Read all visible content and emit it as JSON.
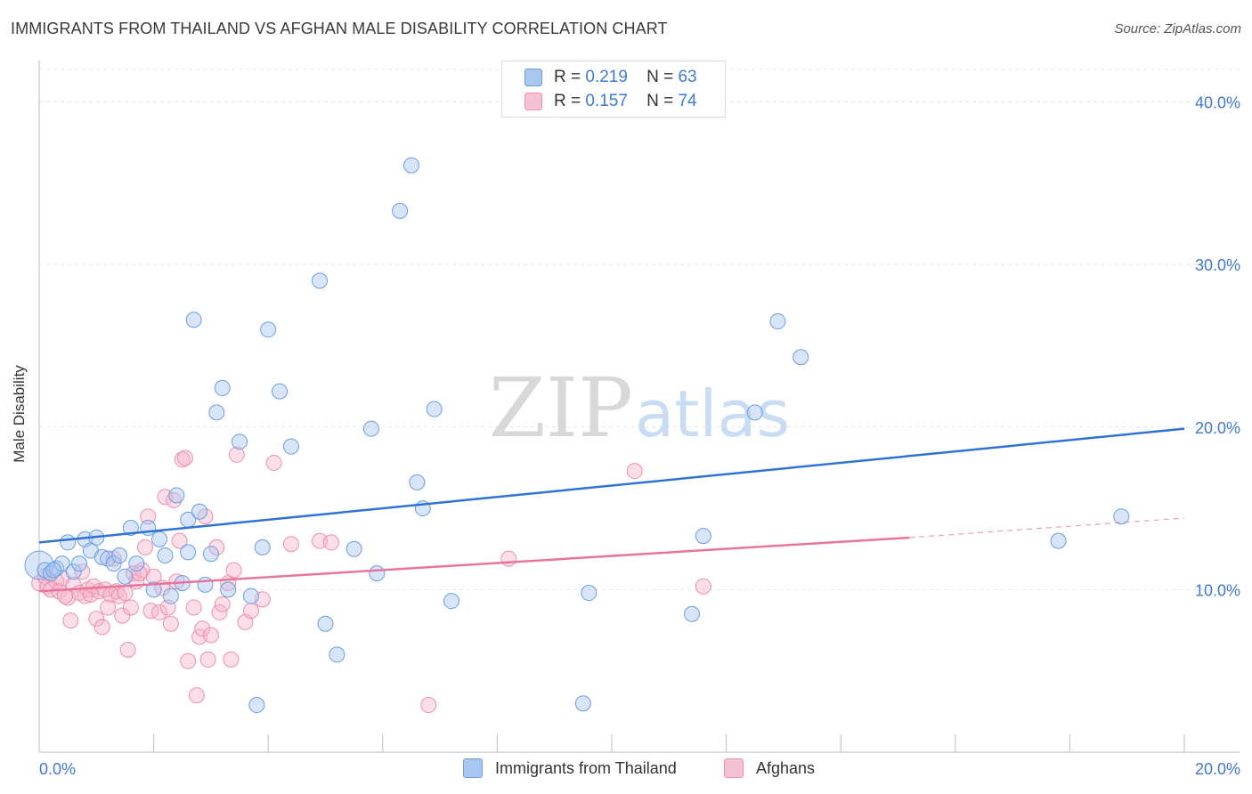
{
  "title": "IMMIGRANTS FROM THAILAND VS AFGHAN MALE DISABILITY CORRELATION CHART",
  "source": "Source: ZipAtlas.com",
  "watermark": {
    "zip": "ZIP",
    "atlas": "atlas"
  },
  "legend_top": {
    "series1": {
      "r_label": "R =",
      "r_value": "0.219",
      "n_label": "N =",
      "n_value": "63"
    },
    "series2": {
      "r_label": "R =",
      "r_value": "0.157",
      "n_label": "N =",
      "n_value": "74"
    }
  },
  "colors": {
    "blue_fill": "#a8c6f0",
    "blue_stroke": "#6a9ee0",
    "blue_line": "#2f72d4",
    "pink_fill": "#f6b6cc",
    "pink_stroke": "#ec8fb0",
    "pink_line": "#e8749b",
    "tick_text": "#3f7ad0",
    "grid": "#e2e2e2"
  },
  "chart_data": {
    "type": "scatter",
    "title": "IMMIGRANTS FROM THAILAND VS AFGHAN MALE DISABILITY CORRELATION CHART",
    "xlabel": "",
    "ylabel": "Male Disability",
    "xlim": [
      0,
      20
    ],
    "ylim": [
      0,
      42
    ],
    "x_tick_labels": [
      "0.0%",
      "20.0%"
    ],
    "y_ticks": [
      10,
      20,
      30,
      40
    ],
    "y_tick_labels": [
      "10.0%",
      "20.0%",
      "30.0%",
      "40.0%"
    ],
    "series": [
      {
        "name": "Immigrants from Thailand",
        "color": "#a8c6f0",
        "trend": {
          "x0": 0,
          "y0": 12.9,
          "x1": 20,
          "y1": 19.9
        },
        "points": [
          [
            0.0,
            11.5
          ],
          [
            0.1,
            11.2
          ],
          [
            0.2,
            11.0
          ],
          [
            0.3,
            11.3
          ],
          [
            0.4,
            11.6
          ],
          [
            0.5,
            12.9
          ],
          [
            0.6,
            11.1
          ],
          [
            0.7,
            11.6
          ],
          [
            0.8,
            13.1
          ],
          [
            0.9,
            12.4
          ],
          [
            1.0,
            13.2
          ],
          [
            1.1,
            12.0
          ],
          [
            1.2,
            11.9
          ],
          [
            1.3,
            11.6
          ],
          [
            1.4,
            12.1
          ],
          [
            1.5,
            10.8
          ],
          [
            1.6,
            13.8
          ],
          [
            1.7,
            11.6
          ],
          [
            1.9,
            13.8
          ],
          [
            2.0,
            10.0
          ],
          [
            2.1,
            13.1
          ],
          [
            2.2,
            12.1
          ],
          [
            2.3,
            9.6
          ],
          [
            2.4,
            15.8
          ],
          [
            2.5,
            10.4
          ],
          [
            2.6,
            14.3
          ],
          [
            2.7,
            26.6
          ],
          [
            2.8,
            14.8
          ],
          [
            2.9,
            10.3
          ],
          [
            3.0,
            12.2
          ],
          [
            3.1,
            20.9
          ],
          [
            3.2,
            22.4
          ],
          [
            3.3,
            10.0
          ],
          [
            3.5,
            19.1
          ],
          [
            3.7,
            9.6
          ],
          [
            3.9,
            12.6
          ],
          [
            4.0,
            26.0
          ],
          [
            4.2,
            22.2
          ],
          [
            4.4,
            18.8
          ],
          [
            4.9,
            29.0
          ],
          [
            5.0,
            7.9
          ],
          [
            5.2,
            6.0
          ],
          [
            5.5,
            12.5
          ],
          [
            5.8,
            19.9
          ],
          [
            5.9,
            11.0
          ],
          [
            6.3,
            33.3
          ],
          [
            6.5,
            36.1
          ],
          [
            6.6,
            16.6
          ],
          [
            6.7,
            15.0
          ],
          [
            6.9,
            21.1
          ],
          [
            7.2,
            9.3
          ],
          [
            9.5,
            3.0
          ],
          [
            9.6,
            9.8
          ],
          [
            11.4,
            8.5
          ],
          [
            11.6,
            13.3
          ],
          [
            12.5,
            20.9
          ],
          [
            12.9,
            26.5
          ],
          [
            13.3,
            24.3
          ],
          [
            17.8,
            13.0
          ],
          [
            18.9,
            14.5
          ],
          [
            2.6,
            12.3
          ],
          [
            3.8,
            2.9
          ],
          [
            0.25,
            11.2
          ]
        ]
      },
      {
        "name": "Afghans",
        "color": "#f6b6cc",
        "trend": {
          "x0": 0,
          "y0": 9.9,
          "x1": 15.2,
          "y1": 13.2,
          "dash_x1": 20,
          "dash_y1": 14.4
        },
        "points": [
          [
            0.0,
            10.4
          ],
          [
            0.1,
            10.8
          ],
          [
            0.15,
            10.2
          ],
          [
            0.2,
            10.0
          ],
          [
            0.3,
            10.5
          ],
          [
            0.35,
            9.9
          ],
          [
            0.4,
            10.7
          ],
          [
            0.5,
            9.5
          ],
          [
            0.55,
            8.1
          ],
          [
            0.6,
            10.3
          ],
          [
            0.7,
            9.8
          ],
          [
            0.75,
            11.1
          ],
          [
            0.8,
            9.6
          ],
          [
            0.85,
            10.0
          ],
          [
            0.9,
            9.7
          ],
          [
            0.95,
            10.2
          ],
          [
            1.0,
            8.2
          ],
          [
            1.05,
            9.9
          ],
          [
            1.1,
            7.7
          ],
          [
            1.15,
            10.0
          ],
          [
            1.2,
            8.9
          ],
          [
            1.25,
            9.7
          ],
          [
            1.3,
            11.9
          ],
          [
            1.35,
            9.9
          ],
          [
            1.4,
            9.6
          ],
          [
            1.45,
            8.4
          ],
          [
            1.5,
            9.8
          ],
          [
            1.55,
            6.3
          ],
          [
            1.6,
            8.9
          ],
          [
            1.65,
            11.0
          ],
          [
            1.7,
            10.5
          ],
          [
            1.8,
            11.2
          ],
          [
            1.85,
            12.6
          ],
          [
            1.9,
            14.5
          ],
          [
            1.95,
            8.7
          ],
          [
            2.0,
            10.8
          ],
          [
            2.1,
            8.6
          ],
          [
            2.15,
            10.1
          ],
          [
            2.2,
            15.7
          ],
          [
            2.25,
            8.9
          ],
          [
            2.3,
            7.9
          ],
          [
            2.35,
            15.5
          ],
          [
            2.4,
            10.5
          ],
          [
            2.5,
            18.0
          ],
          [
            2.55,
            18.1
          ],
          [
            2.6,
            5.6
          ],
          [
            2.7,
            8.9
          ],
          [
            2.75,
            3.5
          ],
          [
            2.8,
            7.1
          ],
          [
            2.85,
            7.6
          ],
          [
            2.9,
            14.5
          ],
          [
            2.95,
            5.7
          ],
          [
            3.1,
            12.6
          ],
          [
            3.15,
            8.6
          ],
          [
            3.2,
            9.1
          ],
          [
            3.3,
            10.4
          ],
          [
            3.35,
            5.7
          ],
          [
            3.4,
            11.2
          ],
          [
            3.45,
            18.3
          ],
          [
            3.6,
            8.0
          ],
          [
            3.7,
            8.7
          ],
          [
            3.9,
            9.4
          ],
          [
            4.1,
            17.8
          ],
          [
            4.4,
            12.8
          ],
          [
            4.9,
            13.0
          ],
          [
            5.1,
            12.9
          ],
          [
            6.8,
            2.9
          ],
          [
            8.2,
            11.9
          ],
          [
            10.4,
            17.3
          ],
          [
            11.6,
            10.2
          ],
          [
            3.0,
            7.2
          ],
          [
            2.45,
            13.0
          ],
          [
            0.45,
            9.6
          ],
          [
            1.75,
            11.0
          ]
        ]
      }
    ]
  },
  "legend_bottom": {
    "series1_label": "Immigrants from Thailand",
    "series2_label": "Afghans"
  }
}
